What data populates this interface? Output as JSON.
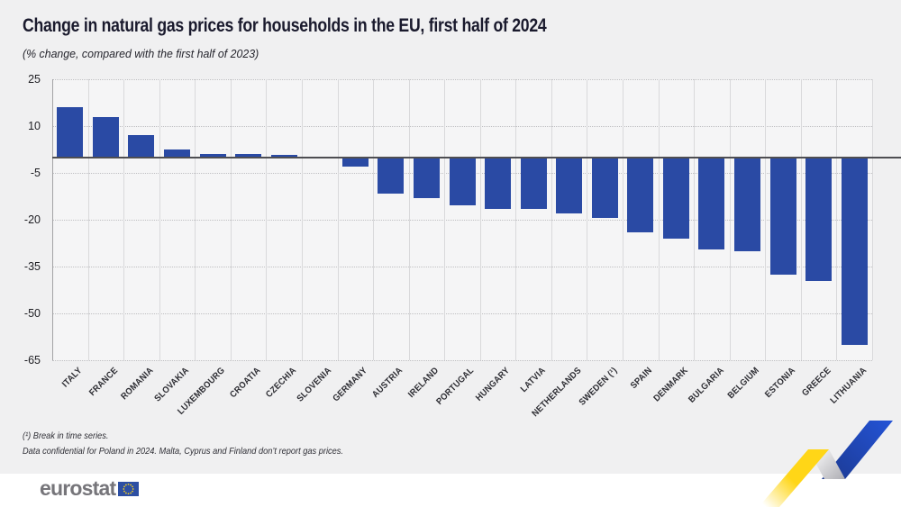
{
  "header": {
    "title": "Change in natural gas prices for households in the EU, first half of 2024",
    "subtitle": "(% change, compared with the first half of 2023)"
  },
  "chart_data": {
    "type": "bar",
    "title": "Change in natural gas prices for households in the EU, first half of 2024",
    "subtitle": "(% change, compared with the first half of 2023)",
    "unit": "% change vs first half of 2023",
    "categories": [
      "ITALY",
      "FRANCE",
      "ROMANIA",
      "SLOVAKIA",
      "LUXEMBOURG",
      "CROATIA",
      "CZECHIA",
      "SLOVENIA",
      "GERMANY",
      "AUSTRIA",
      "IRELAND",
      "PORTUGAL",
      "HUNGARY",
      "LATVIA",
      "NETHERLANDS",
      "SWEDEN (¹)",
      "SPAIN",
      "DENMARK",
      "BULGARIA",
      "BELGIUM",
      "ESTONIA",
      "GREECE",
      "LITHUANIA"
    ],
    "values": [
      16,
      13,
      7,
      2.5,
      1.1,
      1.1,
      0.7,
      0,
      -3,
      -11.5,
      -13,
      -15.5,
      -16.5,
      -16.5,
      -18,
      -19.5,
      -24,
      -26,
      -29.5,
      -30,
      -37.5,
      -39.5,
      -60
    ],
    "yticks": [
      25,
      10,
      -5,
      -20,
      -35,
      -50,
      -65
    ],
    "ylim": [
      -65,
      25
    ],
    "xlabel": "",
    "ylabel": "",
    "legend": "none",
    "grid": "horizontal dotted, vertical solid column separators",
    "bar_color": "#2a4aa4"
  },
  "footnotes": {
    "line1": "(¹) Break in time series.",
    "line2": "Data confidential for Poland in 2024. Malta, Cyprus and Finland don’t report gas prices."
  },
  "footer": {
    "brand": "eurostat"
  },
  "colors": {
    "bar_blue": "#2a4aa4",
    "flag_blue": "#2d4fa3",
    "star_yellow": "#ffd617",
    "brand_grey": "#76757a",
    "ribbon_yellow": "#ffd617",
    "ribbon_blue_dark": "#1c3a92",
    "ribbon_blue_bright": "#2453d6"
  }
}
